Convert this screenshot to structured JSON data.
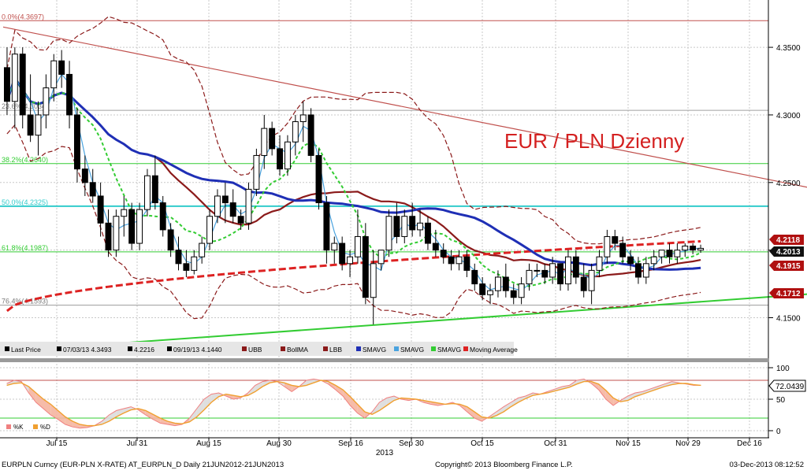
{
  "chart_data": [
    {
      "type": "candlestick",
      "title": "EUR / PLN Dzienny",
      "x_tick_labels": [
        "Jul 15",
        "Jul 31",
        "Aug 15",
        "Aug 30",
        "Sep 16",
        "Sep 30",
        "Oct 15",
        "Oct 31",
        "Nov 15",
        "Nov 29",
        "Dec 16"
      ],
      "x_year_label": "2013",
      "y_tick_labels": [
        "4.3500",
        "4.3000",
        "4.2500",
        "4.2000",
        "4.1500"
      ],
      "ylim": [
        4.12,
        4.385
      ],
      "grid": true,
      "ohlc": [
        {
          "o": 4.335,
          "h": 4.35,
          "l": 4.3,
          "c": 4.31
        },
        {
          "o": 4.31,
          "h": 4.35,
          "l": 4.29,
          "c": 4.345
        },
        {
          "o": 4.345,
          "h": 4.35,
          "l": 4.29,
          "c": 4.3
        },
        {
          "o": 4.3,
          "h": 4.33,
          "l": 4.28,
          "c": 4.285
        },
        {
          "o": 4.285,
          "h": 4.31,
          "l": 4.27,
          "c": 4.3
        },
        {
          "o": 4.3,
          "h": 4.33,
          "l": 4.29,
          "c": 4.32
        },
        {
          "o": 4.32,
          "h": 4.345,
          "l": 4.31,
          "c": 4.34
        },
        {
          "o": 4.34,
          "h": 4.348,
          "l": 4.32,
          "c": 4.33
        },
        {
          "o": 4.33,
          "h": 4.34,
          "l": 4.29,
          "c": 4.3
        },
        {
          "o": 4.3,
          "h": 4.305,
          "l": 4.25,
          "c": 4.26
        },
        {
          "o": 4.26,
          "h": 4.27,
          "l": 4.24,
          "c": 4.25
        },
        {
          "o": 4.25,
          "h": 4.26,
          "l": 4.235,
          "c": 4.24
        },
        {
          "o": 4.24,
          "h": 4.25,
          "l": 4.21,
          "c": 4.22
        },
        {
          "o": 4.22,
          "h": 4.23,
          "l": 4.195,
          "c": 4.2
        },
        {
          "o": 4.2,
          "h": 4.23,
          "l": 4.195,
          "c": 4.225
        },
        {
          "o": 4.225,
          "h": 4.24,
          "l": 4.21,
          "c": 4.23
        },
        {
          "o": 4.23,
          "h": 4.235,
          "l": 4.2,
          "c": 4.205
        },
        {
          "o": 4.205,
          "h": 4.235,
          "l": 4.2,
          "c": 4.23
        },
        {
          "o": 4.23,
          "h": 4.26,
          "l": 4.225,
          "c": 4.255
        },
        {
          "o": 4.255,
          "h": 4.27,
          "l": 4.23,
          "c": 4.235
        },
        {
          "o": 4.235,
          "h": 4.24,
          "l": 4.21,
          "c": 4.215
        },
        {
          "o": 4.215,
          "h": 4.22,
          "l": 4.195,
          "c": 4.2
        },
        {
          "o": 4.2,
          "h": 4.21,
          "l": 4.185,
          "c": 4.19
        },
        {
          "o": 4.19,
          "h": 4.2,
          "l": 4.18,
          "c": 4.185
        },
        {
          "o": 4.185,
          "h": 4.2,
          "l": 4.182,
          "c": 4.195
        },
        {
          "o": 4.195,
          "h": 4.21,
          "l": 4.19,
          "c": 4.205
        },
        {
          "o": 4.205,
          "h": 4.23,
          "l": 4.2,
          "c": 4.225
        },
        {
          "o": 4.225,
          "h": 4.245,
          "l": 4.22,
          "c": 4.24
        },
        {
          "o": 4.24,
          "h": 4.25,
          "l": 4.22,
          "c": 4.235
        },
        {
          "o": 4.235,
          "h": 4.245,
          "l": 4.22,
          "c": 4.225
        },
        {
          "o": 4.225,
          "h": 4.23,
          "l": 4.215,
          "c": 4.22
        },
        {
          "o": 4.22,
          "h": 4.25,
          "l": 4.215,
          "c": 4.245
        },
        {
          "o": 4.245,
          "h": 4.275,
          "l": 4.24,
          "c": 4.27
        },
        {
          "o": 4.27,
          "h": 4.3,
          "l": 4.26,
          "c": 4.29
        },
        {
          "o": 4.29,
          "h": 4.295,
          "l": 4.27,
          "c": 4.275
        },
        {
          "o": 4.275,
          "h": 4.285,
          "l": 4.255,
          "c": 4.26
        },
        {
          "o": 4.26,
          "h": 4.285,
          "l": 4.255,
          "c": 4.28
        },
        {
          "o": 4.28,
          "h": 4.3,
          "l": 4.27,
          "c": 4.295
        },
        {
          "o": 4.295,
          "h": 4.31,
          "l": 4.28,
          "c": 4.3
        },
        {
          "o": 4.3,
          "h": 4.305,
          "l": 4.265,
          "c": 4.27
        },
        {
          "o": 4.27,
          "h": 4.275,
          "l": 4.23,
          "c": 4.235
        },
        {
          "o": 4.235,
          "h": 4.24,
          "l": 4.19,
          "c": 4.2
        },
        {
          "o": 4.2,
          "h": 4.21,
          "l": 4.19,
          "c": 4.205
        },
        {
          "o": 4.205,
          "h": 4.21,
          "l": 4.185,
          "c": 4.19
        },
        {
          "o": 4.19,
          "h": 4.2,
          "l": 4.18,
          "c": 4.195
        },
        {
          "o": 4.195,
          "h": 4.23,
          "l": 4.19,
          "c": 4.21
        },
        {
          "o": 4.21,
          "h": 4.22,
          "l": 4.16,
          "c": 4.165
        },
        {
          "o": 4.165,
          "h": 4.2,
          "l": 4.145,
          "c": 4.19
        },
        {
          "o": 4.19,
          "h": 4.2,
          "l": 4.185,
          "c": 4.2
        },
        {
          "o": 4.2,
          "h": 4.23,
          "l": 4.195,
          "c": 4.225
        },
        {
          "o": 4.225,
          "h": 4.235,
          "l": 4.205,
          "c": 4.21
        },
        {
          "o": 4.21,
          "h": 4.23,
          "l": 4.205,
          "c": 4.225
        },
        {
          "o": 4.225,
          "h": 4.235,
          "l": 4.21,
          "c": 4.215
        },
        {
          "o": 4.215,
          "h": 4.23,
          "l": 4.21,
          "c": 4.22
        },
        {
          "o": 4.22,
          "h": 4.225,
          "l": 4.2,
          "c": 4.205
        },
        {
          "o": 4.205,
          "h": 4.215,
          "l": 4.195,
          "c": 4.2
        },
        {
          "o": 4.2,
          "h": 4.205,
          "l": 4.19,
          "c": 4.195
        },
        {
          "o": 4.195,
          "h": 4.2,
          "l": 4.185,
          "c": 4.19
        },
        {
          "o": 4.19,
          "h": 4.2,
          "l": 4.185,
          "c": 4.195
        },
        {
          "o": 4.195,
          "h": 4.2,
          "l": 4.18,
          "c": 4.185
        },
        {
          "o": 4.185,
          "h": 4.19,
          "l": 4.17,
          "c": 4.175
        },
        {
          "o": 4.175,
          "h": 4.18,
          "l": 4.163,
          "c": 4.167
        },
        {
          "o": 4.167,
          "h": 4.175,
          "l": 4.16,
          "c": 4.17
        },
        {
          "o": 4.17,
          "h": 4.185,
          "l": 4.165,
          "c": 4.18
        },
        {
          "o": 4.18,
          "h": 4.19,
          "l": 4.165,
          "c": 4.17
        },
        {
          "o": 4.17,
          "h": 4.175,
          "l": 4.16,
          "c": 4.165
        },
        {
          "o": 4.165,
          "h": 4.18,
          "l": 4.16,
          "c": 4.175
        },
        {
          "o": 4.175,
          "h": 4.19,
          "l": 4.17,
          "c": 4.185
        },
        {
          "o": 4.185,
          "h": 4.19,
          "l": 4.18,
          "c": 4.185
        },
        {
          "o": 4.185,
          "h": 4.19,
          "l": 4.175,
          "c": 4.18
        },
        {
          "o": 4.18,
          "h": 4.195,
          "l": 4.175,
          "c": 4.19
        },
        {
          "o": 4.19,
          "h": 4.19,
          "l": 4.17,
          "c": 4.175
        },
        {
          "o": 4.175,
          "h": 4.2,
          "l": 4.17,
          "c": 4.195
        },
        {
          "o": 4.195,
          "h": 4.2,
          "l": 4.175,
          "c": 4.18
        },
        {
          "o": 4.18,
          "h": 4.19,
          "l": 4.165,
          "c": 4.17
        },
        {
          "o": 4.17,
          "h": 4.19,
          "l": 4.16,
          "c": 4.185
        },
        {
          "o": 4.185,
          "h": 4.2,
          "l": 4.18,
          "c": 4.195
        },
        {
          "o": 4.195,
          "h": 4.215,
          "l": 4.19,
          "c": 4.21
        },
        {
          "o": 4.21,
          "h": 4.215,
          "l": 4.2,
          "c": 4.205
        },
        {
          "o": 4.205,
          "h": 4.21,
          "l": 4.19,
          "c": 4.195
        },
        {
          "o": 4.195,
          "h": 4.2,
          "l": 4.185,
          "c": 4.19
        },
        {
          "o": 4.19,
          "h": 4.195,
          "l": 4.175,
          "c": 4.18
        },
        {
          "o": 4.18,
          "h": 4.195,
          "l": 4.175,
          "c": 4.19
        },
        {
          "o": 4.19,
          "h": 4.2,
          "l": 4.185,
          "c": 4.195
        },
        {
          "o": 4.195,
          "h": 4.2,
          "l": 4.19,
          "c": 4.2
        },
        {
          "o": 4.2,
          "h": 4.205,
          "l": 4.19,
          "c": 4.195
        },
        {
          "o": 4.195,
          "h": 4.205,
          "l": 4.19,
          "c": 4.2
        },
        {
          "o": 4.2,
          "h": 4.205,
          "l": 4.195,
          "c": 4.203
        },
        {
          "o": 4.203,
          "h": 4.205,
          "l": 4.197,
          "c": 4.2
        },
        {
          "o": 4.2,
          "h": 4.204,
          "l": 4.198,
          "c": 4.2013
        }
      ],
      "horizontal_levels": [
        {
          "label": "0.0%(4.3697)",
          "value": 4.3697,
          "color": "#c0504d"
        },
        {
          "label": "23.6%(4.3034)",
          "value": 4.3034,
          "color": "#a0a0a0"
        },
        {
          "label": "38.2%(4.2640)",
          "value": 4.264,
          "color": "#33cc33"
        },
        {
          "label": "50.0%(4.2325)",
          "value": 4.2325,
          "color": "#33cccc"
        },
        {
          "label": "61.8%(4.1987)",
          "value": 4.1987,
          "color": "#33cc33"
        },
        {
          "label": "76.4%(4.1593)",
          "value": 4.1593,
          "color": "#a0a0a0"
        }
      ],
      "trendlines": [
        {
          "name": "resistance",
          "color": "#c0504d",
          "from": [
            0,
            4.365
          ],
          "to": [
            118,
            4.2295
          ]
        },
        {
          "name": "support",
          "color": "#33cc33",
          "from": [
            0,
            4.125
          ],
          "to": [
            118,
            4.1735
          ]
        }
      ],
      "series_colors": {
        "upper_band": "#8b1a1a",
        "mid_band": "#8b1a1a",
        "lower_band": "#8b1a1a",
        "sma_slow": "#1f2fb5",
        "sma_fast": "#4aa3df",
        "sma_mid": "#33cc33",
        "moving_average": "#dd2222"
      },
      "price_tags": [
        {
          "value": "4.2118",
          "color": "#b01010"
        },
        {
          "value": "4.2013",
          "color": "#111111"
        },
        {
          "value": "4.1915",
          "color": "#b01010"
        },
        {
          "value": "4.1712",
          "color": "#b01010"
        }
      ],
      "legend": [
        {
          "label": "Last Price",
          "color": "#000000"
        },
        {
          "label": "07/03/13 4.3493",
          "color": "#000000"
        },
        {
          "label": "4.2216",
          "color": "#000000"
        },
        {
          "label": "09/19/13 4.1440",
          "color": "#000000"
        },
        {
          "label": "UBB",
          "color": "#8b1a1a"
        },
        {
          "label": "BollMA",
          "color": "#8b1a1a"
        },
        {
          "label": "LBB",
          "color": "#8b1a1a"
        },
        {
          "label": "SMAVG",
          "color": "#1f2fb5"
        },
        {
          "label": "SMAVG",
          "color": "#4aa3df"
        },
        {
          "label": "SMAVG",
          "color": "#33cc33"
        },
        {
          "label": "Moving Average",
          "color": "#dd2222"
        }
      ]
    },
    {
      "type": "line",
      "y_tick_labels": [
        "100",
        "50",
        "0"
      ],
      "ylim": [
        0,
        100
      ],
      "reference_lines": [
        80,
        20
      ],
      "last_value_tag": "72.0439",
      "k_series_color": "#f08080",
      "d_series_color": "#f0a030",
      "legend": [
        {
          "label": "%K",
          "color": "#f08080"
        },
        {
          "label": "%D",
          "color": "#f0a030"
        }
      ],
      "k_values": [
        75,
        80,
        78,
        60,
        45,
        35,
        25,
        18,
        10,
        6,
        4,
        5,
        8,
        15,
        25,
        32,
        35,
        38,
        33,
        25,
        18,
        12,
        10,
        8,
        10,
        20,
        35,
        50,
        58,
        60,
        55,
        50,
        52,
        60,
        72,
        78,
        80,
        78,
        70,
        62,
        70,
        80,
        82,
        80,
        74,
        65,
        55,
        40,
        28,
        20,
        30,
        45,
        52,
        55,
        50,
        48,
        50,
        45,
        42,
        40,
        42,
        45,
        40,
        30,
        20,
        15,
        22,
        30,
        38,
        45,
        52,
        55,
        60,
        58,
        62,
        66,
        70,
        72,
        80,
        82,
        75,
        65,
        50,
        40,
        48,
        55,
        60,
        62,
        66,
        70,
        74,
        78,
        76,
        74,
        72,
        72
      ],
      "d_values": [
        72,
        75,
        76,
        70,
        60,
        50,
        42,
        32,
        22,
        15,
        10,
        8,
        8,
        10,
        15,
        22,
        28,
        33,
        35,
        32,
        26,
        20,
        15,
        12,
        11,
        14,
        22,
        33,
        45,
        54,
        58,
        56,
        54,
        56,
        62,
        70,
        76,
        78,
        76,
        72,
        70,
        72,
        76,
        80,
        78,
        72,
        65,
        54,
        42,
        30,
        26,
        32,
        40,
        48,
        52,
        51,
        50,
        48,
        46,
        44,
        42,
        43,
        42,
        38,
        30,
        22,
        20,
        24,
        30,
        38,
        45,
        51,
        56,
        58,
        60,
        63,
        66,
        69,
        74,
        78,
        78,
        74,
        64,
        52,
        46,
        48,
        54,
        58,
        62,
        66,
        70,
        73,
        75,
        75,
        73,
        72
      ]
    }
  ],
  "footer": {
    "left": "EURPLN Curncy (EUR-PLN X-RATE) AT_EURPLN_D  Daily 21JUN2012-21JUN2013",
    "center": "Copyright© 2013 Bloomberg Finance L.P.",
    "right": "03-Dec-2013 08:12:52"
  }
}
